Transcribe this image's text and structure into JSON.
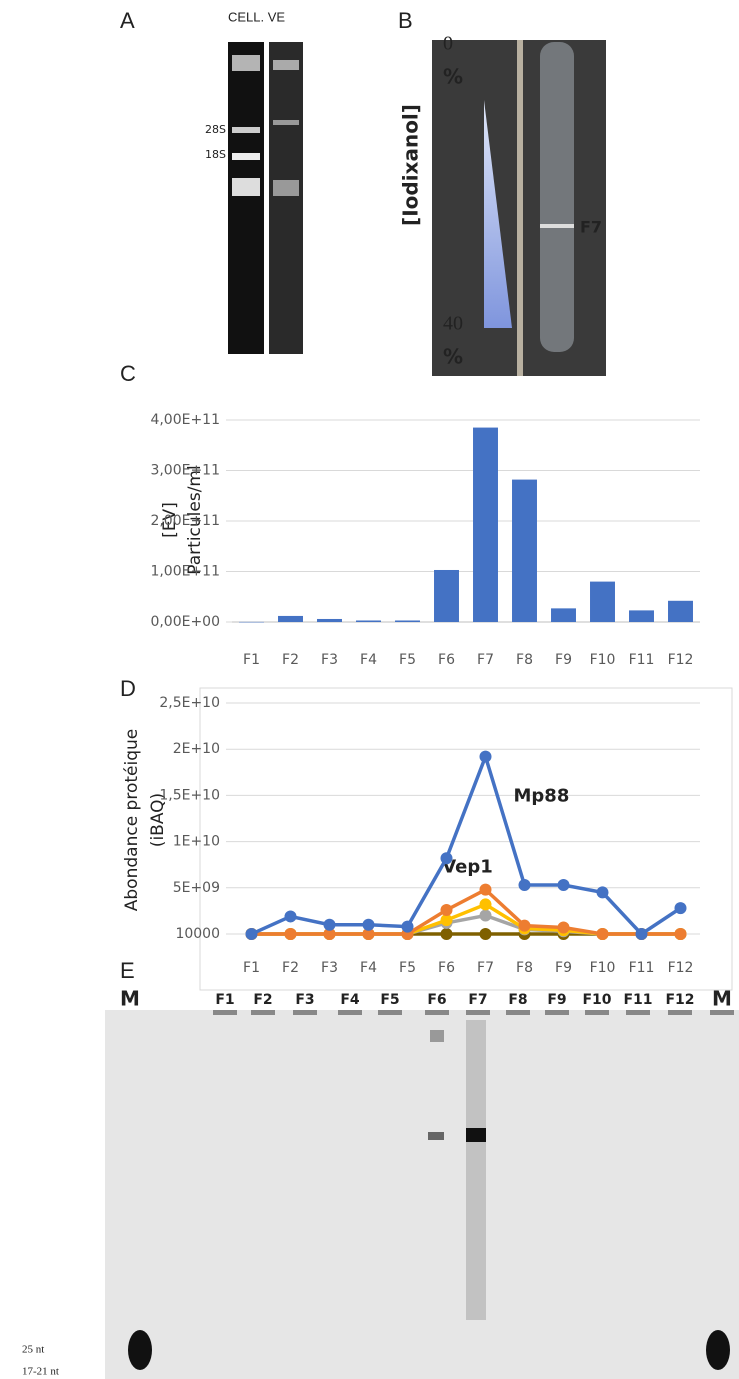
{
  "panel_a": {
    "letter": "A",
    "lanes": "CELL. VE",
    "markers": [
      "28S",
      "18S"
    ]
  },
  "panel_b": {
    "letter": "B",
    "top_value": "0",
    "top_unit": "%",
    "axis_label": "[Iodixanol]",
    "bottom_value": "40",
    "bottom_unit": "%",
    "fraction": "F7"
  },
  "chart_data": [
    {
      "type": "bar",
      "panel": "C",
      "y_label": [
        "[EV]",
        "Particules/ml"
      ],
      "categories": [
        "F1",
        "F2",
        "F3",
        "F4",
        "F5",
        "F6",
        "F7",
        "F8",
        "F9",
        "F10",
        "F11",
        "F12"
      ],
      "values": [
        200000000,
        12000000000,
        6000000000,
        3000000000,
        3000000000,
        103000000000,
        385000000000,
        282000000000,
        27000000000,
        80000000000,
        23000000000,
        42000000000
      ],
      "color": "#4472c4",
      "ylim": [
        0,
        400000000000
      ],
      "yticks": [
        {
          "value": 0,
          "label": "0,00E+00"
        },
        {
          "value": 100000000000,
          "label": "1,00E+11"
        },
        {
          "value": 200000000000,
          "label": "2,00E+11"
        },
        {
          "value": 300000000000,
          "label": "3,00E+11"
        },
        {
          "value": 400000000000,
          "label": "4,00E+11"
        }
      ],
      "grid": true
    },
    {
      "type": "line",
      "panel": "D",
      "y_label": [
        "Abondance protéique",
        "(iBAQ)"
      ],
      "categories": [
        "F1",
        "F2",
        "F3",
        "F4",
        "F5",
        "F6",
        "F7",
        "F8",
        "F9",
        "F10",
        "F11",
        "F12"
      ],
      "series": [
        {
          "color": "#7f6000",
          "values": [
            10000,
            10000,
            10000,
            10000,
            10000,
            10000,
            10000,
            10000,
            10000,
            10000,
            10000,
            10000
          ]
        },
        {
          "color": "#a5a5a5",
          "values": [
            10000,
            10000,
            10000,
            10000,
            10000,
            1200000000,
            2000000000,
            500000000,
            300000000,
            10000,
            10000,
            10000
          ]
        },
        {
          "color": "#ffc000",
          "values": [
            10000,
            10000,
            10000,
            10000,
            10000,
            1500000000,
            3200000000,
            600000000,
            400000000,
            10000,
            10000,
            10000
          ]
        },
        {
          "name": "Vep1",
          "color": "#ed7d31",
          "values": [
            10000,
            10000,
            10000,
            10000,
            10000,
            2600000000,
            4800000000,
            900000000,
            700000000,
            10000,
            10000,
            10000
          ]
        },
        {
          "name": "Mp88",
          "color": "#4472c4",
          "values": [
            10000,
            1900000000,
            1000000000,
            1000000000,
            800000000,
            8200000000,
            19200000000,
            5300000000,
            5300000000,
            4500000000,
            10000,
            2800000000
          ]
        }
      ],
      "ylim": [
        10000,
        25000000000
      ],
      "yticks": [
        10000,
        {
          "value": 5000000000,
          "label": "5E+09"
        },
        {
          "value": 10000000000,
          "label": "1E+10"
        },
        {
          "value": 15000000000,
          "label": "1,5E+10"
        },
        {
          "value": 20000000000,
          "label": "2E+10"
        },
        {
          "value": 25000000000,
          "label": "2,5E+10"
        }
      ],
      "grid": true
    }
  ],
  "panel_e": {
    "letter": "E",
    "lanes": [
      "M",
      "F1",
      "F2",
      "F3",
      "F4",
      "F5",
      "F6",
      "F7",
      "F8",
      "F9",
      "F10",
      "F11",
      "F12",
      "M"
    ],
    "size_labels": [
      "25 nt",
      "17-21 nt"
    ]
  }
}
